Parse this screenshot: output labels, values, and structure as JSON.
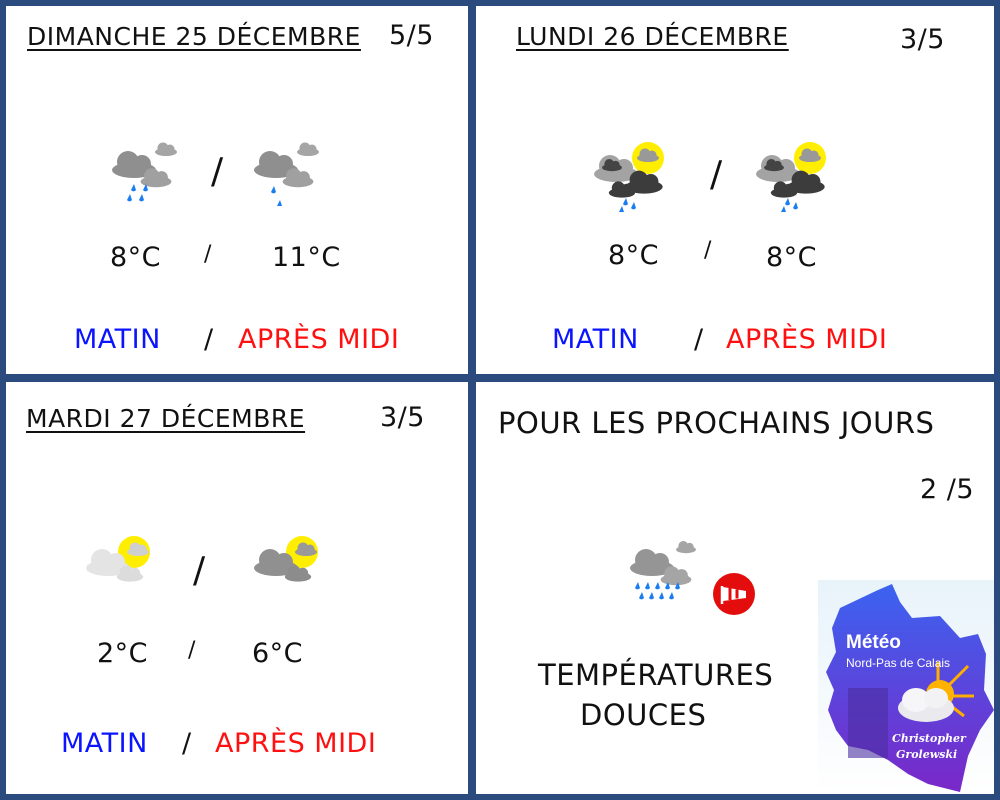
{
  "days": [
    {
      "title": "DIMANCHE 25 DÉCEMBRE",
      "score": "5/5",
      "temp_morning": "8°C",
      "temp_afternoon": "11°C",
      "sep": "/",
      "morning": "MATIN",
      "afternoon": "APRÈS MIDI",
      "icon_morning": "rain-cloud-icon",
      "icon_afternoon": "light-rain-cloud-icon"
    },
    {
      "title": "LUNDI 26 DÉCEMBRE",
      "score": "3/5",
      "temp_morning": "8°C",
      "temp_afternoon": "8°C",
      "sep": "/",
      "morning": "MATIN",
      "afternoon": "APRÈS MIDI",
      "icon_morning": "sun-storm-rain-icon",
      "icon_afternoon": "sun-storm-rain-icon"
    },
    {
      "title": "MARDI 27 DÉCEMBRE",
      "score": "3/5",
      "temp_morning": "2°C",
      "temp_afternoon": "6°C",
      "sep": "/",
      "morning": "MATIN",
      "afternoon": "APRÈS MIDI",
      "icon_morning": "sun-light-cloud-icon",
      "icon_afternoon": "sun-cloud-icon"
    }
  ],
  "outlook": {
    "title": "POUR LES PROCHAINS JOURS",
    "score": "2 /5",
    "line1": "TEMPÉRATURES",
    "line2": "DOUCES",
    "icon": "heavy-rain-cloud-icon",
    "wind_icon": "windsock-icon"
  },
  "logo": {
    "title": "Météo",
    "subtitle": "Nord-Pas de Calais",
    "author1": "Christopher",
    "author2": "Grolewski"
  },
  "colors": {
    "border": "#2b4a7d",
    "morning": "#0a14ff",
    "afternoon": "#ff1010"
  }
}
